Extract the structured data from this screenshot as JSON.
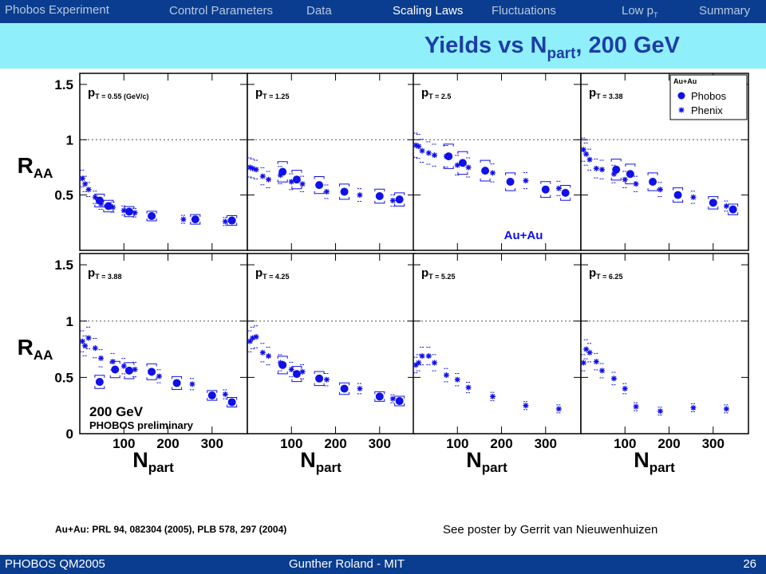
{
  "header": {
    "brand": "Phobos Experiment",
    "nav": [
      {
        "label": "Control Parameters",
        "active": false
      },
      {
        "label": "Data",
        "active": false
      },
      {
        "label": "Scaling Laws",
        "active": true
      },
      {
        "label": "Fluctuations",
        "active": false
      },
      {
        "label": "Low p",
        "sub": "T",
        "active": false
      },
      {
        "label": "Summary",
        "active": false
      }
    ]
  },
  "slide": {
    "title_main": "Yields vs N",
    "title_sub": "part",
    "title_tail": ", 200 GeV"
  },
  "chart_data": {
    "type": "scatter",
    "ylabel": "R",
    "ylabel_sub": "AA",
    "xlabel": "N",
    "xlabel_sub": "part",
    "xlim": [
      0,
      380
    ],
    "ylim": [
      0,
      1.6
    ],
    "xticks": [
      100,
      200,
      300
    ],
    "yticks_top": [
      0.5,
      1,
      1.5
    ],
    "yticks_bottom": [
      0,
      0.5,
      1,
      1.5
    ],
    "reference_line": 1,
    "colors": {
      "markers": "#1010e8",
      "frame": "#000000",
      "dotted": "#555555"
    },
    "legend": {
      "title": "Au+Au",
      "position": "top-right",
      "entries": [
        {
          "name": "Phobos",
          "marker": "circle"
        },
        {
          "name": "Phenix",
          "marker": "star"
        }
      ]
    },
    "annotations": {
      "panel3": "Au+Au",
      "panel5_energy": "200 GeV",
      "panel5_prelim": "PHOBOS preliminary"
    },
    "panels": [
      {
        "label_main": "p",
        "label_sub": "T",
        "label_value": " = 0.55 (GeV/c)",
        "phobos": [
          [
            45,
            0.45
          ],
          [
            65,
            0.4
          ],
          [
            112,
            0.35
          ],
          [
            163,
            0.31
          ],
          [
            262,
            0.28
          ],
          [
            345,
            0.27
          ]
        ],
        "phenix": [
          [
            6,
            0.65
          ],
          [
            12,
            0.6
          ],
          [
            20,
            0.55
          ],
          [
            35,
            0.48
          ],
          [
            48,
            0.42
          ],
          [
            75,
            0.39
          ],
          [
            100,
            0.36
          ],
          [
            125,
            0.34
          ],
          [
            235,
            0.28
          ],
          [
            330,
            0.26
          ]
        ]
      },
      {
        "label_main": "p",
        "label_sub": "T",
        "label_value": " = 1.25",
        "phobos": [
          [
            80,
            0.71
          ],
          [
            112,
            0.64
          ],
          [
            163,
            0.59
          ],
          [
            220,
            0.53
          ],
          [
            300,
            0.49
          ],
          [
            345,
            0.46
          ]
        ],
        "phenix": [
          [
            6,
            0.75
          ],
          [
            12,
            0.74
          ],
          [
            20,
            0.73
          ],
          [
            35,
            0.67
          ],
          [
            48,
            0.64
          ],
          [
            75,
            0.68
          ],
          [
            100,
            0.62
          ],
          [
            125,
            0.6
          ],
          [
            180,
            0.53
          ],
          [
            255,
            0.5
          ],
          [
            330,
            0.45
          ]
        ]
      },
      {
        "label_main": "p",
        "label_sub": "T",
        "label_value": " = 2.5",
        "phobos": [
          [
            80,
            0.85
          ],
          [
            112,
            0.79
          ],
          [
            163,
            0.72
          ],
          [
            220,
            0.62
          ],
          [
            300,
            0.55
          ],
          [
            345,
            0.52
          ]
        ],
        "phenix": [
          [
            6,
            0.95
          ],
          [
            12,
            0.94
          ],
          [
            20,
            0.9
          ],
          [
            35,
            0.88
          ],
          [
            48,
            0.86
          ],
          [
            75,
            0.85
          ],
          [
            100,
            0.77
          ],
          [
            125,
            0.75
          ],
          [
            180,
            0.7
          ],
          [
            255,
            0.63
          ],
          [
            330,
            0.56
          ]
        ]
      },
      {
        "label_main": "p",
        "label_sub": "T",
        "label_value": " = 3.38",
        "phobos": [
          [
            80,
            0.73
          ],
          [
            112,
            0.69
          ],
          [
            163,
            0.62
          ],
          [
            220,
            0.5
          ],
          [
            300,
            0.43
          ],
          [
            345,
            0.37
          ]
        ],
        "phenix": [
          [
            6,
            0.91
          ],
          [
            12,
            0.87
          ],
          [
            20,
            0.82
          ],
          [
            35,
            0.74
          ],
          [
            48,
            0.73
          ],
          [
            75,
            0.69
          ],
          [
            100,
            0.64
          ],
          [
            125,
            0.6
          ],
          [
            180,
            0.55
          ],
          [
            255,
            0.48
          ],
          [
            330,
            0.4
          ]
        ]
      },
      {
        "label_main": "p",
        "label_sub": "T",
        "label_value": " = 3.88",
        "phobos": [
          [
            45,
            0.46
          ],
          [
            80,
            0.57
          ],
          [
            112,
            0.56
          ],
          [
            163,
            0.55
          ],
          [
            220,
            0.45
          ],
          [
            300,
            0.34
          ],
          [
            345,
            0.28
          ]
        ],
        "phenix": [
          [
            6,
            0.82
          ],
          [
            12,
            0.78
          ],
          [
            20,
            0.85
          ],
          [
            35,
            0.76
          ],
          [
            48,
            0.67
          ],
          [
            75,
            0.64
          ],
          [
            100,
            0.6
          ],
          [
            125,
            0.57
          ],
          [
            180,
            0.51
          ],
          [
            255,
            0.44
          ],
          [
            330,
            0.35
          ]
        ]
      },
      {
        "label_main": "p",
        "label_sub": "T",
        "label_value": " = 4.25",
        "phobos": [
          [
            80,
            0.61
          ],
          [
            112,
            0.53
          ],
          [
            163,
            0.49
          ],
          [
            220,
            0.4
          ],
          [
            300,
            0.33
          ],
          [
            345,
            0.29
          ]
        ],
        "phenix": [
          [
            6,
            0.82
          ],
          [
            12,
            0.85
          ],
          [
            20,
            0.86
          ],
          [
            35,
            0.72
          ],
          [
            48,
            0.69
          ],
          [
            75,
            0.63
          ],
          [
            100,
            0.57
          ],
          [
            125,
            0.55
          ],
          [
            180,
            0.48
          ],
          [
            255,
            0.4
          ],
          [
            330,
            0.31
          ]
        ]
      },
      {
        "label_main": "p",
        "label_sub": "T",
        "label_value": " = 5.25",
        "phobos": [],
        "phenix": [
          [
            6,
            0.61
          ],
          [
            12,
            0.63
          ],
          [
            20,
            0.69
          ],
          [
            35,
            0.69
          ],
          [
            48,
            0.63
          ],
          [
            75,
            0.52
          ],
          [
            100,
            0.48
          ],
          [
            125,
            0.41
          ],
          [
            180,
            0.33
          ],
          [
            255,
            0.25
          ],
          [
            330,
            0.22
          ]
        ]
      },
      {
        "label_main": "p",
        "label_sub": "T",
        "label_value": " = 6.25",
        "phobos": [],
        "phenix": [
          [
            6,
            0.63
          ],
          [
            12,
            0.75
          ],
          [
            20,
            0.72
          ],
          [
            35,
            0.64
          ],
          [
            48,
            0.56
          ],
          [
            75,
            0.49
          ],
          [
            100,
            0.4
          ],
          [
            125,
            0.24
          ],
          [
            180,
            0.2
          ],
          [
            255,
            0.23
          ],
          [
            330,
            0.22
          ]
        ]
      }
    ]
  },
  "references": {
    "citation": "Au+Au: PRL 94, 082304 (2005), PLB 578, 297 (2004)",
    "poster": "See poster by Gerrit van Nieuwenhuizen"
  },
  "footer": {
    "left": "PHOBOS QM2005",
    "center": "Gunther Roland - MIT",
    "page": "26"
  }
}
